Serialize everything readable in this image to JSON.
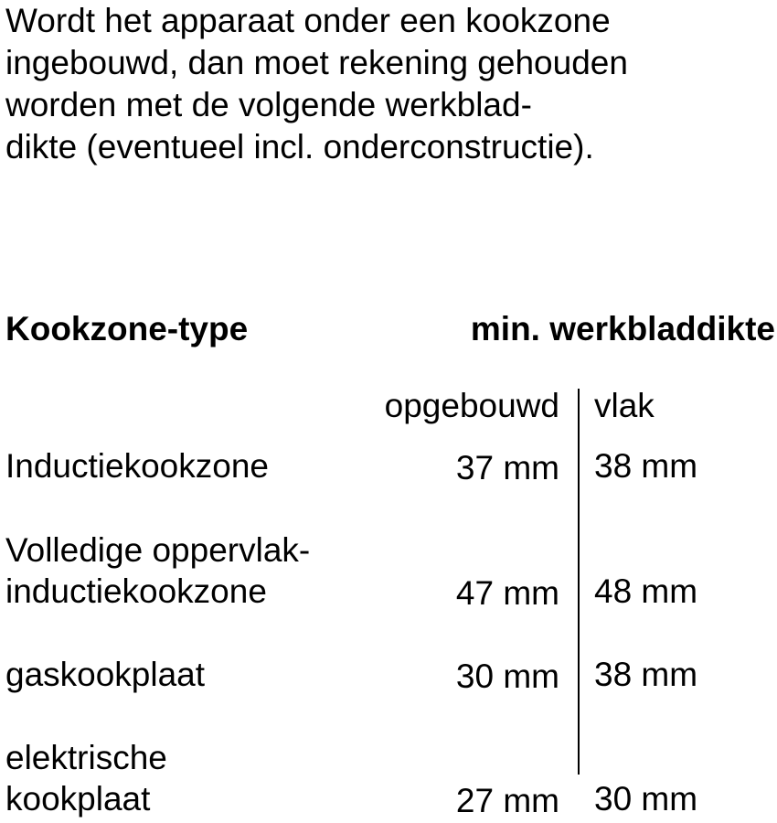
{
  "intro": {
    "lines": [
      "Wordt het apparaat onder een kookzone",
      "ingebouwd, dan moet rekening gehouden",
      "worden met de volgende werkblad-",
      "dikte (eventueel incl. onderconstructie)."
    ]
  },
  "table": {
    "header_type": "Kookzone-type",
    "header_thickness": "min. werkbladdikte",
    "sub_opgebouwd": "opgebouwd",
    "sub_vlak": "vlak",
    "rows": [
      {
        "type_lines": [
          "Inductiekookzone"
        ],
        "opgebouwd": "37 mm",
        "vlak": "38 mm"
      },
      {
        "type_lines": [
          "Volledige oppervlak-",
          "inductiekookzone"
        ],
        "opgebouwd": "47 mm",
        "vlak": "48 mm"
      },
      {
        "type_lines": [
          "gaskookplaat"
        ],
        "opgebouwd": "30 mm",
        "vlak": "38 mm"
      },
      {
        "type_lines": [
          "elektrische",
          "kookplaat"
        ],
        "opgebouwd": "27 mm",
        "vlak": "30 mm"
      }
    ]
  }
}
